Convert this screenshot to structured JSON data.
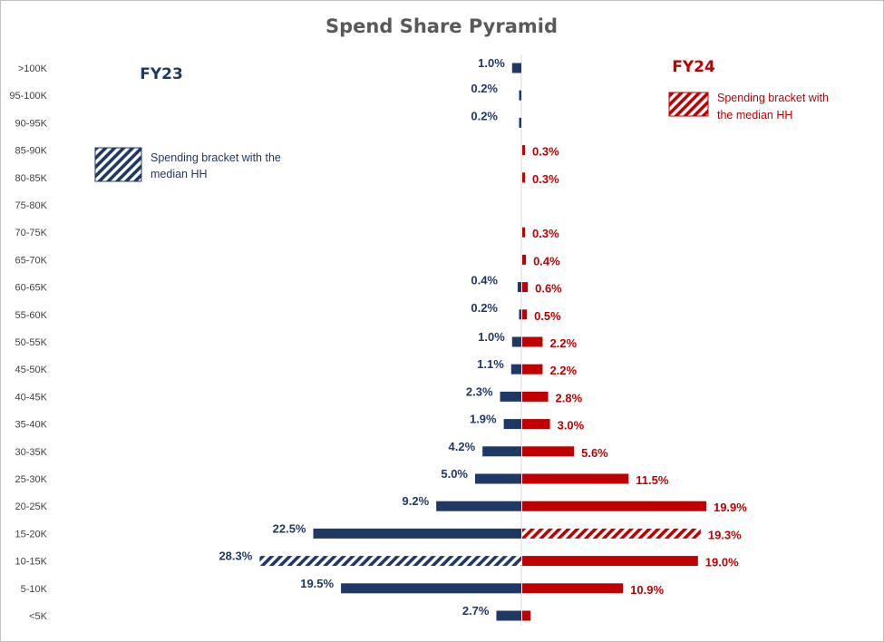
{
  "chart_data": {
    "type": "bar",
    "orientation": "horizontal-pyramid",
    "title": "Spend Share Pyramid",
    "categories": [
      ">100K",
      "95-100K",
      "90-95K",
      "85-90K",
      "80-85K",
      "75-80K",
      "70-75K",
      "65-70K",
      "60-65K",
      "55-60K",
      "50-55K",
      "45-50K",
      "40-45K",
      "35-40K",
      "30-35K",
      "25-30K",
      "20-25K",
      "15-20K",
      "10-15K",
      "5-10K",
      "<5K"
    ],
    "series": [
      {
        "name": "FY23",
        "side": "left",
        "color": "#1f3864",
        "values": [
          1.0,
          0.2,
          0.2,
          0.0,
          0.0,
          0.0,
          0.0,
          0.0,
          0.4,
          0.2,
          1.0,
          1.1,
          2.3,
          1.9,
          4.2,
          5.0,
          9.2,
          22.5,
          28.3,
          19.5,
          2.7
        ],
        "labels": [
          "1.0%",
          "0.2%",
          "0.2%",
          "",
          "",
          "",
          "",
          "",
          "0.4%",
          "0.2%",
          "1.0%",
          "1.1%",
          "2.3%",
          "1.9%",
          "4.2%",
          "5.0%",
          "9.2%",
          "22.5%",
          "28.3%",
          "19.5%",
          "2.7%"
        ],
        "median_category": "10-15K",
        "legend": {
          "label": "FY23",
          "median_text": [
            "Spending bracket with the",
            "median HH"
          ]
        }
      },
      {
        "name": "FY24",
        "side": "right",
        "color": "#c00000",
        "values": [
          0.0,
          0.0,
          0.0,
          0.3,
          0.3,
          0.0,
          0.3,
          0.4,
          0.6,
          0.5,
          2.2,
          2.2,
          2.8,
          3.0,
          5.6,
          11.5,
          19.9,
          19.3,
          19.0,
          10.9,
          0.9
        ],
        "labels": [
          "",
          "",
          "",
          "0.3%",
          "0.3%",
          "",
          "0.3%",
          "0.4%",
          "0.6%",
          "0.5%",
          "2.2%",
          "2.2%",
          "2.8%",
          "3.0%",
          "5.6%",
          "11.5%",
          "19.9%",
          "19.3%",
          "19.0%",
          "10.9%",
          ""
        ],
        "median_category": "15-20K",
        "legend": {
          "label": "FY24",
          "median_text": [
            "Spending bracket with",
            "the median HH"
          ]
        }
      }
    ],
    "xlim": [
      -30,
      30
    ],
    "unit": "%"
  }
}
